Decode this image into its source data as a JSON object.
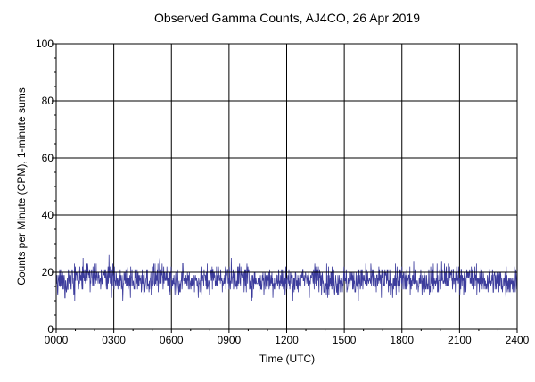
{
  "chart_data": {
    "type": "line",
    "title": "Observed Gamma Counts, AJ4CO, 26 Apr 2019",
    "xlabel": "Time (UTC)",
    "ylabel": "Counts per Minute (CPM), 1-minute sums",
    "xlim": [
      0,
      1440
    ],
    "ylim": [
      0,
      100
    ],
    "x_ticks": [
      {
        "minute": 0,
        "label": "0000"
      },
      {
        "minute": 180,
        "label": "0300"
      },
      {
        "minute": 360,
        "label": "0600"
      },
      {
        "minute": 540,
        "label": "0900"
      },
      {
        "minute": 720,
        "label": "1200"
      },
      {
        "minute": 900,
        "label": "1500"
      },
      {
        "minute": 1080,
        "label": "1800"
      },
      {
        "minute": 1260,
        "label": "2100"
      },
      {
        "minute": 1440,
        "label": "2400"
      }
    ],
    "y_ticks": [
      {
        "value": 0,
        "label": "0"
      },
      {
        "value": 20,
        "label": "20"
      },
      {
        "value": 40,
        "label": "40"
      },
      {
        "value": 60,
        "label": "60"
      },
      {
        "value": 80,
        "label": "80"
      },
      {
        "value": 100,
        "label": "100"
      }
    ],
    "grid": true,
    "series": [
      {
        "color": "#3c3c9c",
        "samples_per_minute": 1,
        "baseline_cpm": 17.5,
        "range_cpm": [
          5,
          31
        ],
        "approx_hourly_means": [
          17,
          18,
          18,
          17,
          17,
          18,
          17,
          17,
          18,
          18,
          17,
          17,
          17,
          18,
          17,
          17,
          17,
          17,
          17,
          17,
          18,
          18,
          17,
          17
        ]
      }
    ],
    "reference_lines": [
      {
        "axis": "y",
        "value": 20,
        "color": "#000000"
      }
    ]
  }
}
